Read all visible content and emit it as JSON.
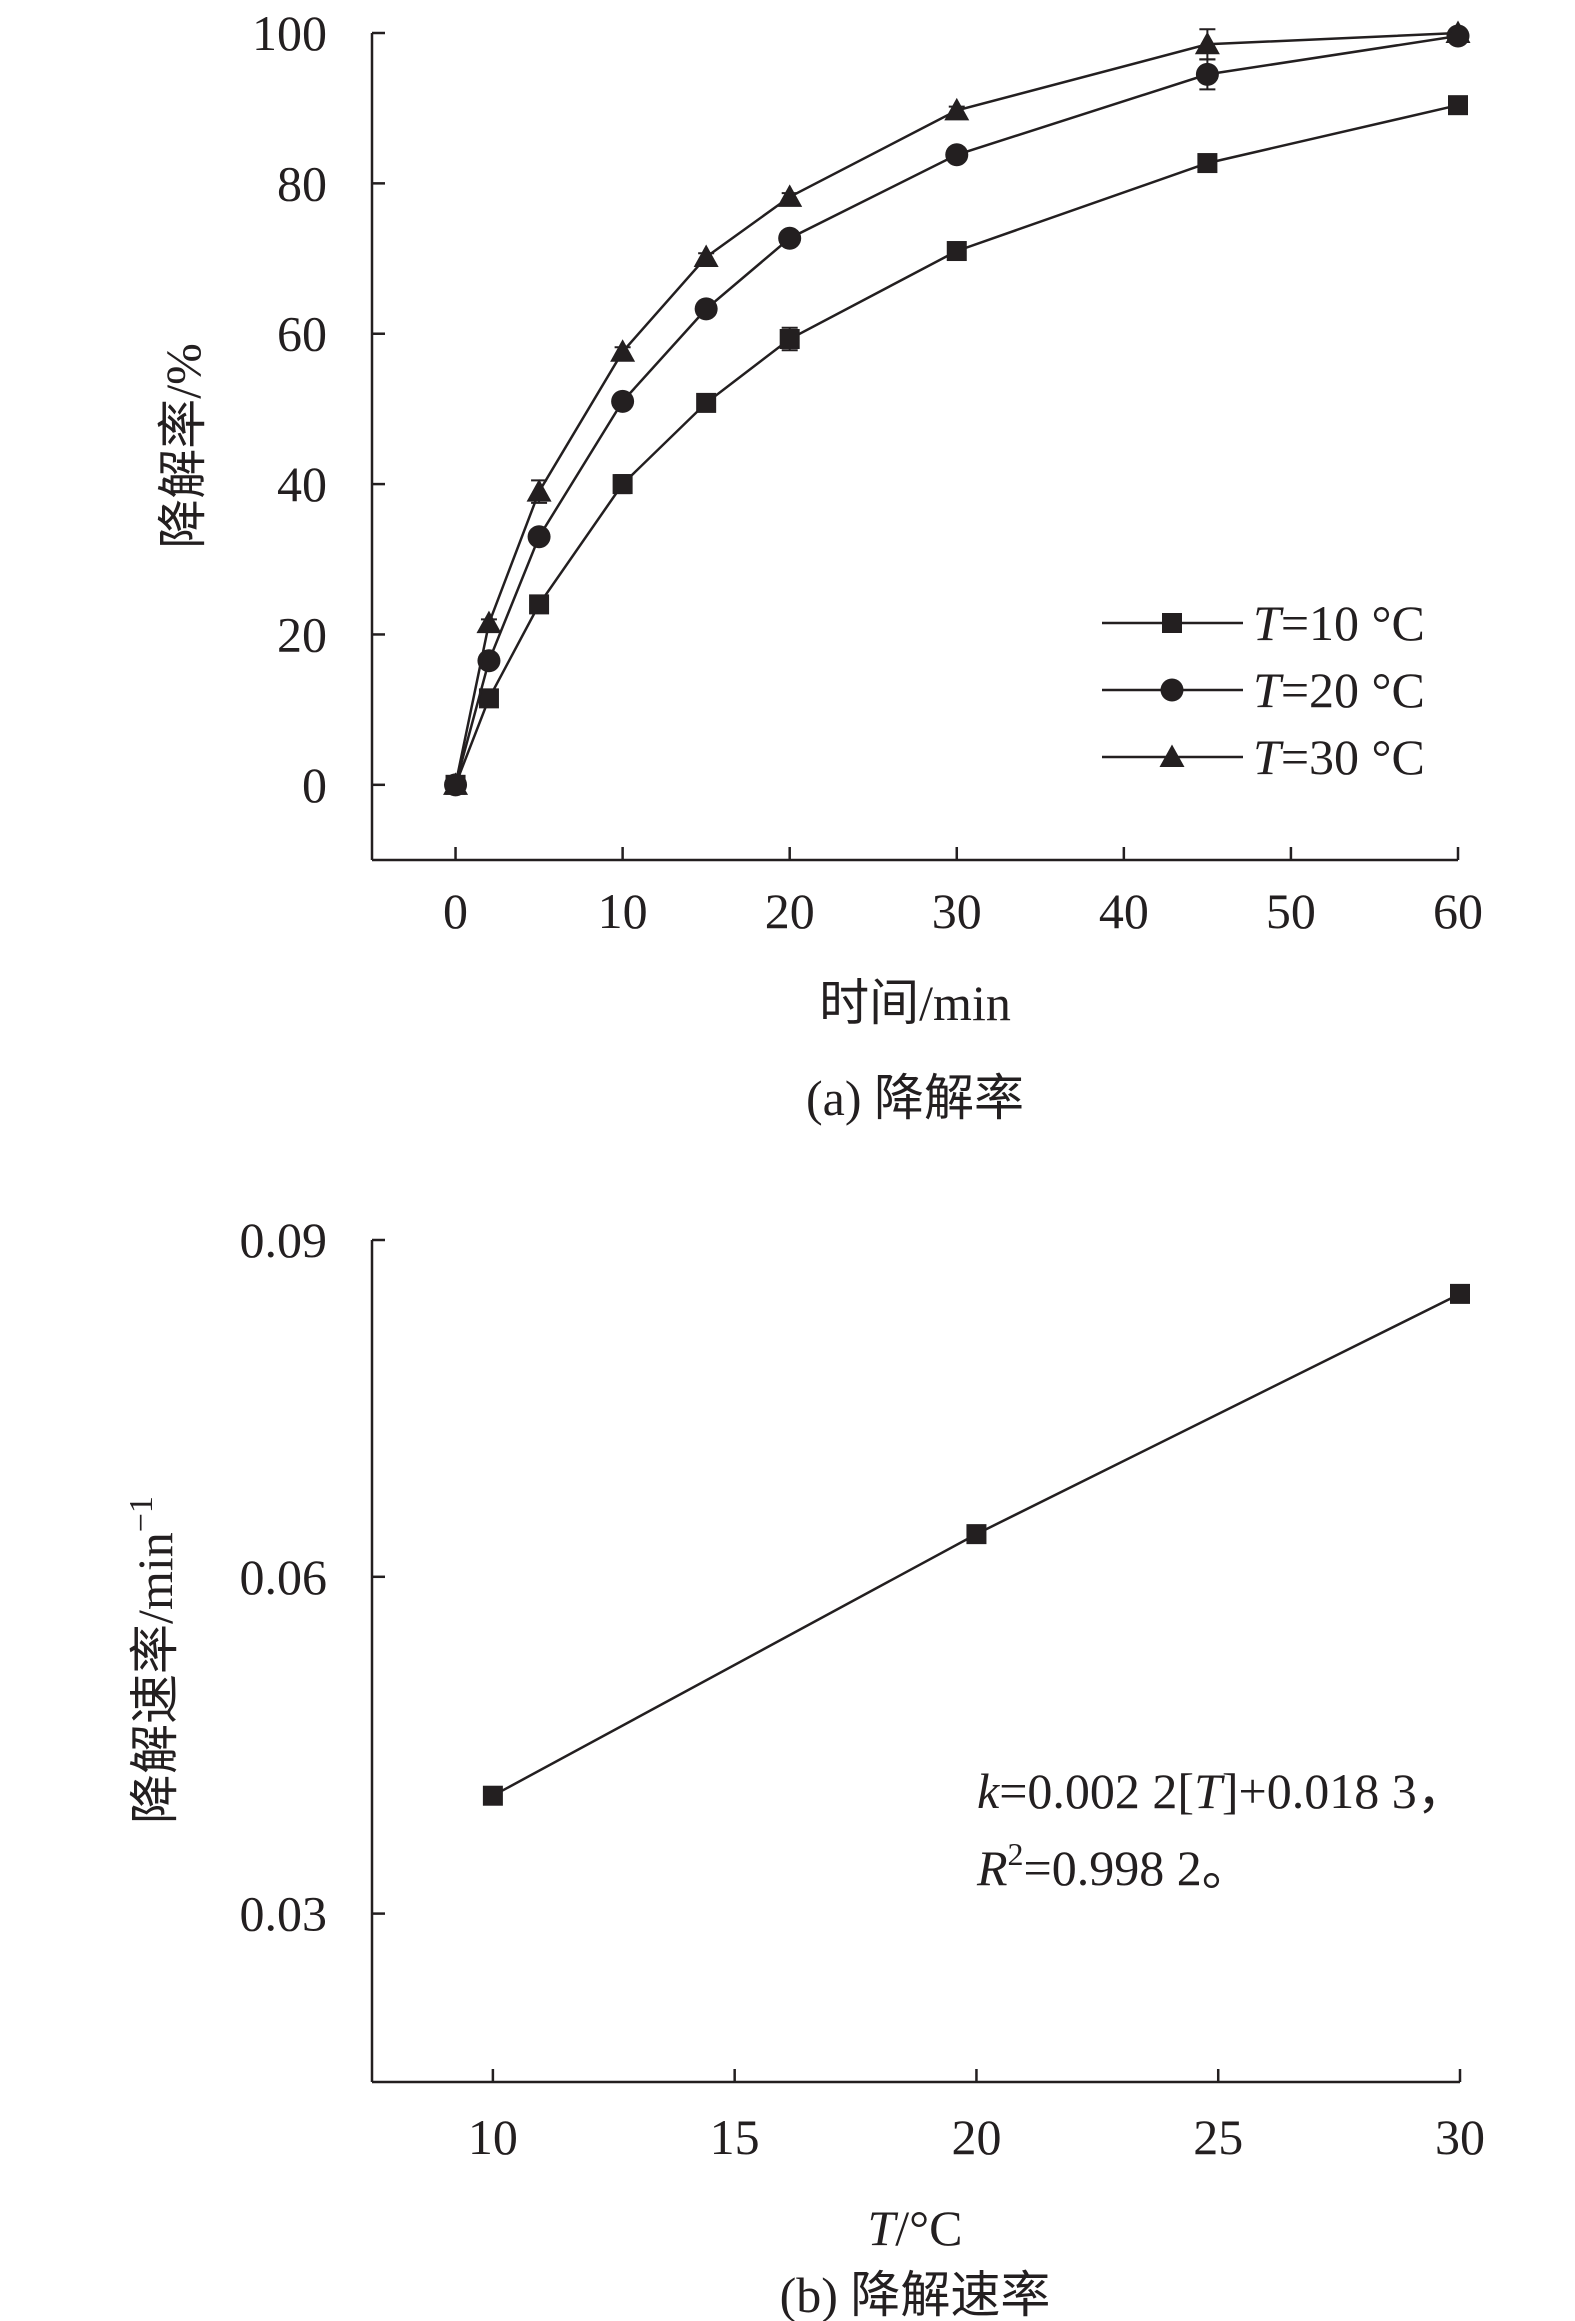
{
  "colors": {
    "ink": "#231f20",
    "background": "#ffffff"
  },
  "chart_data": [
    {
      "type": "line",
      "caption": "(a) 降解率",
      "title": "",
      "xlabel": "时间/min",
      "ylabel": "降解率/%",
      "xlim": [
        -5,
        60
      ],
      "ylim": [
        -10,
        100
      ],
      "xticks": [
        0,
        10,
        20,
        30,
        40,
        50,
        60
      ],
      "yticks": [
        0,
        20,
        40,
        60,
        80,
        100
      ],
      "x": [
        0,
        2,
        5,
        10,
        15,
        20,
        30,
        45,
        60
      ],
      "legend_position": "right, below middle",
      "grid": false,
      "series": [
        {
          "name": "T=10 °C",
          "name_parts": {
            "var": "T",
            "rest": "=10 °C"
          },
          "marker": "square",
          "values": [
            0,
            11.5,
            24,
            40,
            50.8,
            59.3,
            71,
            82.7,
            90.4
          ],
          "error": [
            0,
            0.5,
            0.5,
            1.2,
            0.5,
            1.5,
            0.5,
            0.8,
            0.7
          ]
        },
        {
          "name": "T=20 °C",
          "name_parts": {
            "var": "T",
            "rest": "=20 °C"
          },
          "marker": "circle",
          "values": [
            0,
            16.5,
            33,
            51,
            63.3,
            72.7,
            83.8,
            94.5,
            99.6
          ],
          "error": [
            0,
            0.5,
            0.8,
            0.5,
            0.5,
            0.8,
            0.5,
            2.0,
            0.3
          ]
        },
        {
          "name": "T=30 °C",
          "name_parts": {
            "var": "T",
            "rest": "=30 °C"
          },
          "marker": "triangle",
          "values": [
            0,
            21.5,
            39,
            57.6,
            70.2,
            78.2,
            89.7,
            98.5,
            100
          ],
          "error": [
            0,
            0.5,
            1.5,
            0.6,
            0.5,
            0.5,
            0.5,
            2.0,
            0.3
          ]
        }
      ]
    },
    {
      "type": "line",
      "caption": "(b) 降解速率",
      "title": "",
      "xlabel": "T/°C",
      "xlabel_parts": {
        "var": "T",
        "rest": "/°C"
      },
      "ylabel": "降解速率/min−1",
      "ylabel_parts": {
        "base": "降解速率/min",
        "sup": "−1"
      },
      "xlim": [
        7.5,
        30
      ],
      "ylim": [
        0.015,
        0.09
      ],
      "xticks": [
        10,
        15,
        20,
        25,
        30
      ],
      "yticks": [
        0.03,
        0.06,
        0.09
      ],
      "ytick_labels": [
        "0.03",
        "0.06",
        "0.09"
      ],
      "grid": false,
      "x": [
        10,
        20,
        30
      ],
      "series": [
        {
          "name": "",
          "marker": "square",
          "values": [
            0.0405,
            0.0638,
            0.0852
          ]
        }
      ],
      "annotation": {
        "line1": {
          "var": "k",
          "rest": "=0.002 2[",
          "var2": "T",
          "rest2": "]+0.018 3，"
        },
        "line2": {
          "var": "R",
          "sup": "2",
          "rest": "=0.998 2。"
        }
      }
    }
  ]
}
